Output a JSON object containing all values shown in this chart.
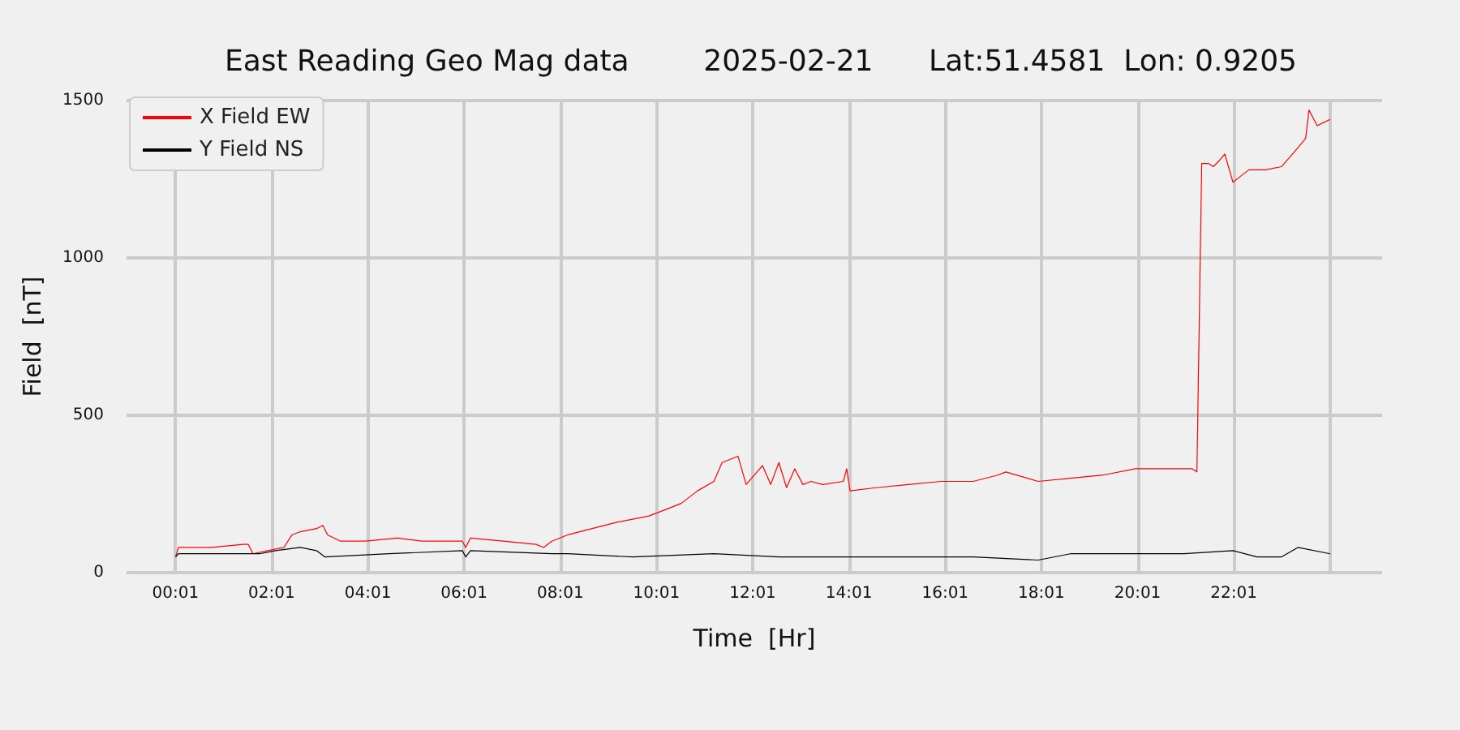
{
  "chart_data": {
    "type": "line",
    "title": "East Reading Geo Mag data        2025-02-21      Lat:51.4581  Lon: 0.9205",
    "xlabel": "Time  [Hr]",
    "ylabel": "Field  [nT]",
    "xlim": [
      -1,
      25.1
    ],
    "ylim": [
      0,
      1500
    ],
    "xticks": [
      {
        "value": 0.0167,
        "label": "00:01"
      },
      {
        "value": 2.0167,
        "label": "02:01"
      },
      {
        "value": 4.0167,
        "label": "04:01"
      },
      {
        "value": 6.0167,
        "label": "06:01"
      },
      {
        "value": 8.0167,
        "label": "08:01"
      },
      {
        "value": 10.0167,
        "label": "10:01"
      },
      {
        "value": 12.0167,
        "label": "12:01"
      },
      {
        "value": 14.0167,
        "label": "14:01"
      },
      {
        "value": 16.0167,
        "label": "16:01"
      },
      {
        "value": 18.0167,
        "label": "18:01"
      },
      {
        "value": 20.0167,
        "label": "20:01"
      },
      {
        "value": 22.0167,
        "label": "22:01"
      },
      {
        "value": 24.0167,
        "label": null
      }
    ],
    "yticks": [
      0,
      500,
      1000,
      1500
    ],
    "grid": true,
    "legend": "top left",
    "marker": "none",
    "line_style": "solid",
    "series": [
      {
        "name": "X Field EW",
        "color": "#ff0000",
        "x": [
          0.02,
          0.08,
          0.76,
          1.43,
          1.53,
          1.63,
          1.94,
          2.27,
          2.44,
          2.61,
          2.95,
          3.08,
          3.18,
          3.45,
          3.96,
          4.63,
          5.14,
          5.98,
          6.05,
          6.15,
          6.83,
          7.51,
          7.67,
          7.84,
          8.17,
          8.68,
          9.19,
          9.52,
          9.86,
          10.2,
          10.53,
          10.87,
          11.21,
          11.38,
          11.71,
          11.88,
          12.05,
          12.22,
          12.39,
          12.56,
          12.72,
          12.89,
          13.06,
          13.23,
          13.47,
          13.9,
          13.97,
          14.04,
          14.58,
          15.25,
          15.93,
          16.6,
          17.11,
          17.28,
          17.95,
          18.62,
          19.3,
          19.97,
          20.65,
          21.15,
          21.25,
          21.35,
          21.49,
          21.59,
          21.72,
          21.83,
          22,
          22.16,
          22.33,
          22.67,
          23.01,
          23.35,
          23.51,
          23.58,
          23.75,
          23.88,
          24.02
        ],
        "values": [
          50,
          80,
          80,
          90,
          90,
          60,
          70,
          80,
          120,
          130,
          140,
          150,
          120,
          100,
          100,
          110,
          100,
          100,
          80,
          110,
          100,
          90,
          80,
          100,
          120,
          140,
          160,
          170,
          180,
          200,
          220,
          260,
          290,
          350,
          370,
          280,
          310,
          340,
          280,
          350,
          270,
          330,
          280,
          290,
          280,
          290,
          330,
          260,
          270,
          280,
          290,
          290,
          310,
          320,
          290,
          300,
          310,
          330,
          330,
          330,
          320,
          1300,
          1300,
          1290,
          1310,
          1330,
          1240,
          1260,
          1280,
          1280,
          1290,
          1350,
          1380,
          1470,
          1420,
          1430,
          1440
        ]
      },
      {
        "name": "Y Field NS",
        "color": "#000000",
        "x": [
          0.02,
          0.08,
          1.77,
          2.1,
          2.61,
          2.95,
          3.12,
          4.46,
          5.98,
          6.05,
          6.15,
          7.84,
          8.17,
          9.52,
          11.21,
          12.56,
          14.58,
          16.6,
          17.95,
          18.62,
          19.3,
          19.97,
          20.98,
          22,
          22.5,
          23.01,
          23.35,
          24.02
        ],
        "values": [
          50,
          60,
          60,
          70,
          80,
          70,
          50,
          60,
          70,
          50,
          70,
          60,
          60,
          50,
          60,
          50,
          50,
          50,
          40,
          60,
          60,
          60,
          60,
          70,
          50,
          50,
          80,
          60
        ]
      }
    ]
  }
}
